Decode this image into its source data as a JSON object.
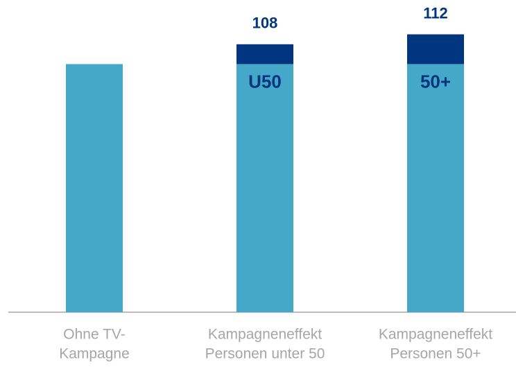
{
  "chart_data": {
    "type": "stacked_bar",
    "categories": [
      [
        "Ohne TV-",
        "Kampagne"
      ],
      [
        "Kampagneneffekt",
        "Personen unter 50"
      ],
      [
        "Kampagneneffekt",
        "Personen 50+"
      ]
    ],
    "series": [
      {
        "color": "#45a8c8",
        "values": [
          100,
          100,
          100
        ]
      },
      {
        "color": "#003580",
        "values": [
          null,
          8,
          12
        ]
      }
    ],
    "totals": [
      null,
      108,
      112
    ],
    "segment_labels": [
      null,
      "U50",
      "50+"
    ],
    "ylim": [
      0,
      125
    ]
  }
}
